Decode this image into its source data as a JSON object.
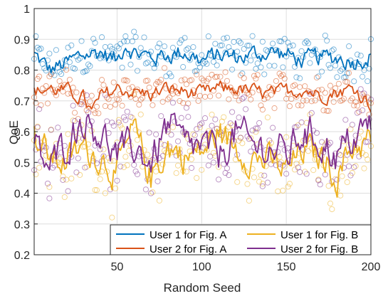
{
  "chart_data": {
    "type": "line",
    "xlabel": "Random Seed",
    "ylabel": "QoE",
    "xlim": [
      1,
      200
    ],
    "ylim": [
      0.2,
      1.0
    ],
    "x_ticks": [
      50,
      100,
      150,
      200
    ],
    "x_tick_labels": [
      "50",
      "100",
      "150",
      "200"
    ],
    "y_ticks": [
      0.2,
      0.3,
      0.4,
      0.5,
      0.6,
      0.7,
      0.8,
      0.9,
      1.0
    ],
    "y_tick_labels": [
      "0.2",
      "0.3",
      "0.4",
      "0.5",
      "0.6",
      "0.7",
      "0.8",
      "0.9",
      "1"
    ],
    "grid": true,
    "legend_position": "bottom-right",
    "legend_columns": 2,
    "overlay": "each series plotted as a moving-average line over per-seed scatter circles of the same color",
    "series": [
      {
        "name": "User 1 for Fig. A",
        "color": "#0072BD",
        "x": [
          1,
          10,
          20,
          30,
          40,
          50,
          55,
          60,
          70,
          80,
          90,
          100,
          110,
          120,
          130,
          140,
          150,
          160,
          170,
          180,
          190,
          200
        ],
        "values": [
          0.85,
          0.8,
          0.82,
          0.85,
          0.86,
          0.83,
          0.89,
          0.86,
          0.84,
          0.85,
          0.86,
          0.83,
          0.85,
          0.84,
          0.85,
          0.86,
          0.85,
          0.83,
          0.84,
          0.84,
          0.83,
          0.85
        ]
      },
      {
        "name": "User 2 for Fig. A",
        "color": "#D95319",
        "x": [
          1,
          10,
          20,
          30,
          35,
          40,
          50,
          60,
          70,
          80,
          90,
          100,
          110,
          120,
          130,
          140,
          150,
          160,
          170,
          180,
          190,
          200
        ],
        "values": [
          0.73,
          0.74,
          0.73,
          0.71,
          0.66,
          0.71,
          0.74,
          0.73,
          0.72,
          0.74,
          0.73,
          0.72,
          0.74,
          0.74,
          0.73,
          0.72,
          0.73,
          0.74,
          0.72,
          0.73,
          0.74,
          0.69
        ]
      },
      {
        "name": "User 1 for Fig. B",
        "color": "#EDB120",
        "x": [
          1,
          10,
          20,
          30,
          40,
          50,
          60,
          70,
          80,
          90,
          100,
          110,
          120,
          130,
          140,
          150,
          160,
          170,
          180,
          190,
          200
        ],
        "values": [
          0.58,
          0.52,
          0.5,
          0.55,
          0.52,
          0.47,
          0.6,
          0.45,
          0.55,
          0.52,
          0.53,
          0.6,
          0.55,
          0.52,
          0.5,
          0.47,
          0.54,
          0.52,
          0.46,
          0.56,
          0.57
        ]
      },
      {
        "name": "User 2 for Fig. B",
        "color": "#7E2F8E",
        "x": [
          1,
          10,
          20,
          30,
          40,
          50,
          60,
          70,
          80,
          90,
          100,
          110,
          120,
          130,
          140,
          150,
          160,
          170,
          180,
          190,
          200
        ],
        "values": [
          0.55,
          0.48,
          0.56,
          0.65,
          0.6,
          0.52,
          0.55,
          0.5,
          0.62,
          0.55,
          0.55,
          0.52,
          0.6,
          0.55,
          0.55,
          0.52,
          0.6,
          0.57,
          0.52,
          0.58,
          0.62
        ]
      }
    ]
  }
}
